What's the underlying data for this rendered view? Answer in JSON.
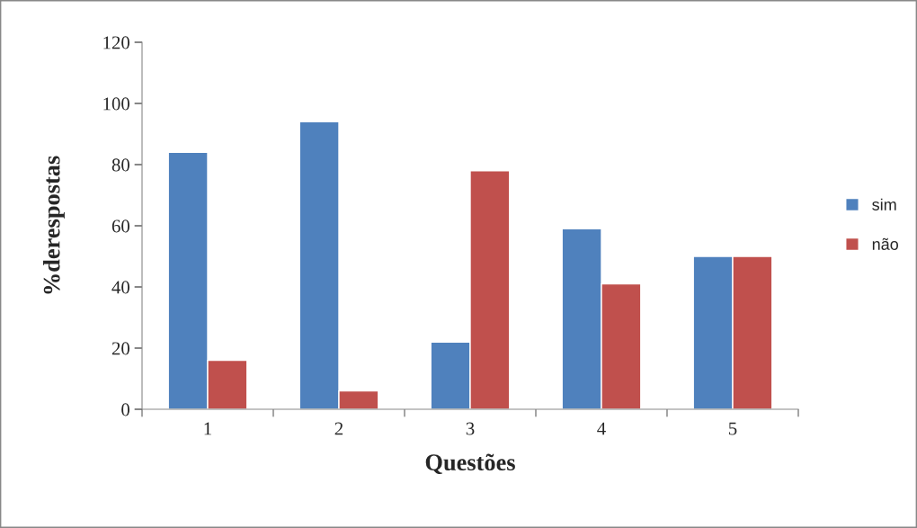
{
  "chart_data": {
    "type": "bar",
    "xlabel": "Questões",
    "ylabel": "%derespostas",
    "categories": [
      "1",
      "2",
      "3",
      "4",
      "5"
    ],
    "series": [
      {
        "name": "sim",
        "color": "#4f81bd",
        "values": [
          84,
          94,
          22,
          59,
          50
        ]
      },
      {
        "name": "não",
        "color": "#c0504d",
        "values": [
          16,
          6,
          78,
          41,
          50
        ]
      }
    ],
    "ylim": [
      0,
      120
    ],
    "yticks": [
      0,
      20,
      40,
      60,
      80,
      100,
      120
    ],
    "grid": false,
    "legend": "right"
  }
}
